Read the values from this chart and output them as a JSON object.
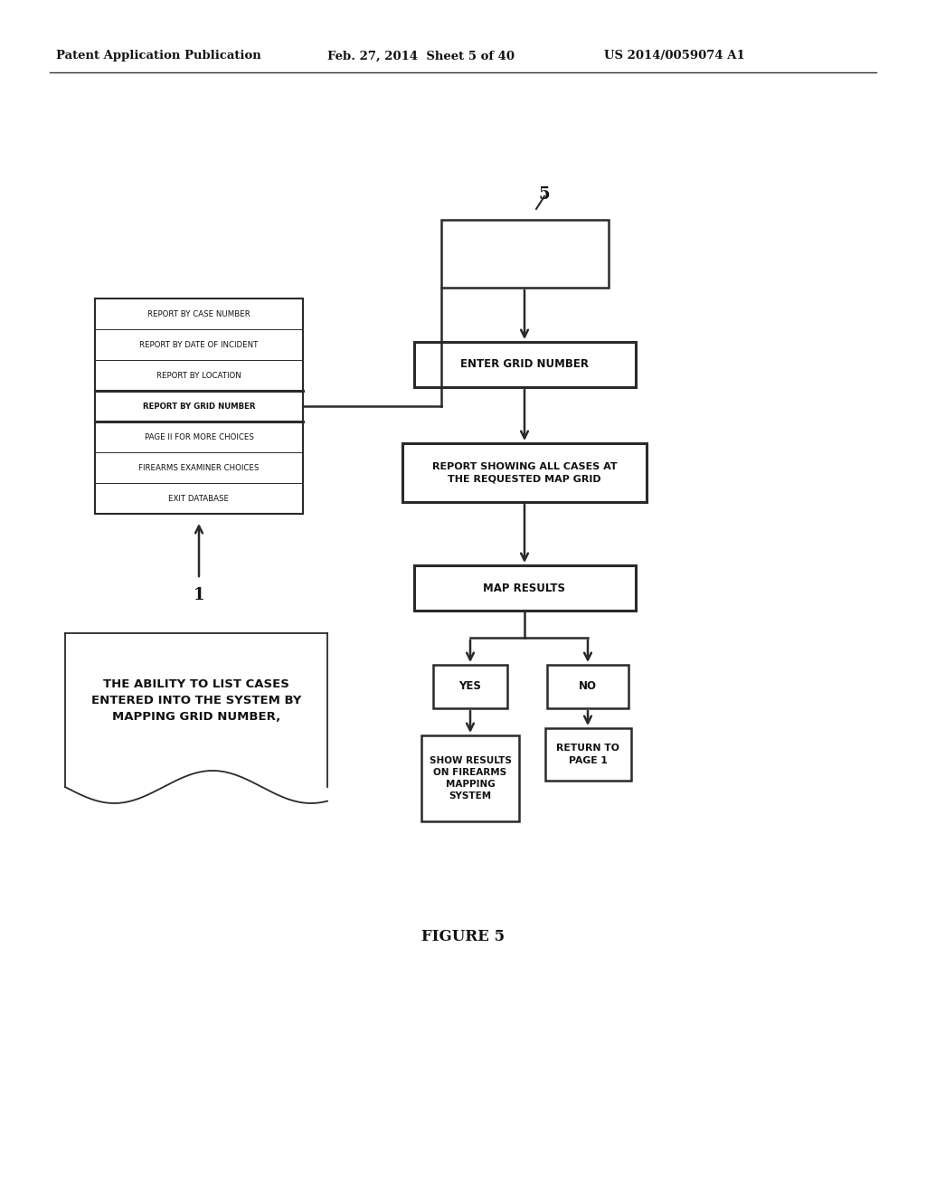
{
  "bg_color": "#ffffff",
  "header_left": "Patent Application Publication",
  "header_mid": "Feb. 27, 2014  Sheet 5 of 40",
  "header_right": "US 2014/0059074 A1",
  "figure_label": "FIGURE 5",
  "menu_items": [
    "REPORT BY CASE NUMBER",
    "REPORT BY DATE OF INCIDENT",
    "REPORT BY LOCATION",
    "REPORT BY GRID NUMBER",
    "PAGE II FOR MORE CHOICES",
    "FIREARMS EXAMINER CHOICES",
    "EXIT DATABASE"
  ],
  "highlighted_menu_item": 3,
  "label_1": "1",
  "label_5": "5",
  "box_enter_grid": "ENTER GRID NUMBER",
  "box_report": "REPORT SHOWING ALL CASES AT\nTHE REQUESTED MAP GRID",
  "box_map_results": "MAP RESULTS",
  "box_yes": "YES",
  "box_no": "NO",
  "box_show_results": "SHOW RESULTS\nON FIREARMS\nMAPPING\nSYSTEM",
  "box_return": "RETURN TO\nPAGE 1",
  "callout_text": "THE ABILITY TO LIST CASES\nENTERED INTO THE SYSTEM BY\nMAPPING GRID NUMBER,"
}
